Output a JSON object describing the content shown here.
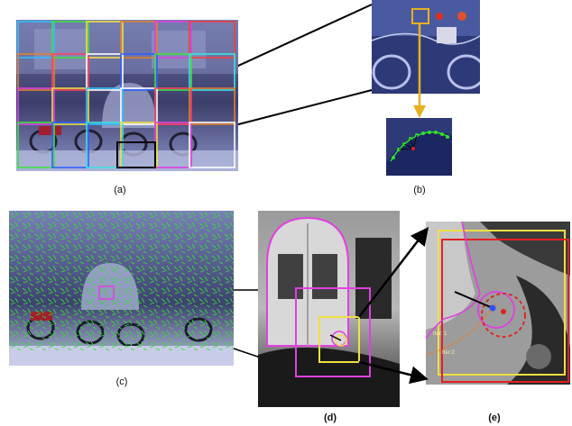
{
  "figure": {
    "captions": {
      "a": "(a)",
      "b": "(b)",
      "c": "(c)",
      "d": "(d)",
      "e": "(e)"
    },
    "annotations": {
      "iter1": "Iter: 1",
      "iter2": "Iter:2"
    },
    "colors": {
      "magenta": "#e040e0",
      "yellow": "#f0e040",
      "red": "#e02020",
      "green": "#30e030",
      "gold_arrow": "#e8b020"
    }
  }
}
